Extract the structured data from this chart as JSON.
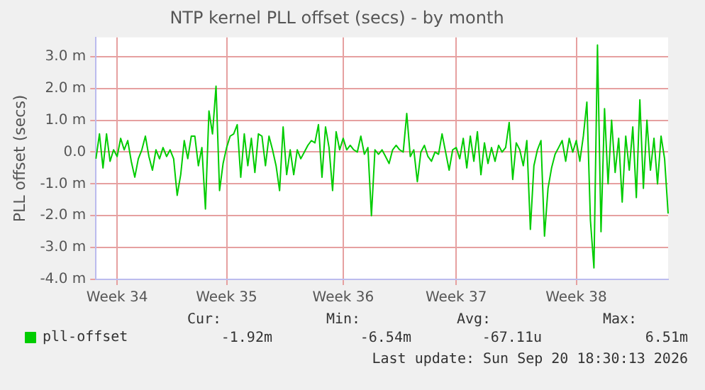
{
  "chart_data": {
    "type": "line",
    "title": "NTP kernel PLL offset (secs) - by month",
    "ylabel": "PLL offset (secs)",
    "ylim": [
      -4,
      3.6
    ],
    "categories": [
      null,
      null,
      null,
      null,
      null,
      null,
      "Week 34",
      null,
      null,
      null,
      null,
      null,
      null,
      null,
      null,
      null,
      null,
      null,
      null,
      null,
      null,
      null,
      null,
      null,
      null,
      null,
      null,
      null,
      null,
      null,
      null,
      null,
      null,
      null,
      null,
      null,
      null,
      "Week 35",
      null,
      null,
      null,
      null,
      null,
      null,
      null,
      null,
      null,
      null,
      null,
      null,
      null,
      null,
      null,
      null,
      null,
      null,
      null,
      null,
      null,
      null,
      null,
      null,
      null,
      null,
      null,
      null,
      null,
      null,
      null,
      null,
      "Week 36",
      null,
      null,
      null,
      null,
      null,
      null,
      null,
      null,
      null,
      null,
      null,
      null,
      null,
      null,
      null,
      null,
      null,
      null,
      null,
      null,
      null,
      null,
      null,
      null,
      null,
      null,
      null,
      null,
      null,
      null,
      null,
      "Week 37",
      null,
      null,
      null,
      null,
      null,
      null,
      null,
      null,
      null,
      null,
      null,
      null,
      null,
      null,
      null,
      null,
      null,
      null,
      null,
      null,
      null,
      null,
      null,
      null,
      null,
      null,
      null,
      null,
      null,
      null,
      null,
      null,
      null,
      "Week 38",
      null,
      null,
      null,
      null,
      null,
      null,
      null,
      null,
      null,
      null,
      null,
      null,
      null,
      null,
      null,
      null,
      null,
      null,
      null,
      null,
      null,
      null,
      null,
      null,
      null,
      null
    ],
    "yticks": [
      {
        "value": -4,
        "label": "-4.0 m"
      },
      {
        "value": -3,
        "label": "-3.0 m"
      },
      {
        "value": -2,
        "label": "-2.0 m"
      },
      {
        "value": -1,
        "label": "-1.0 m"
      },
      {
        "value": 0,
        "label": "0.0"
      },
      {
        "value": 1,
        "label": "1.0 m"
      },
      {
        "value": 2,
        "label": "2.0 m"
      },
      {
        "value": 3,
        "label": "3.0 m"
      }
    ],
    "grid": true,
    "legend": "bottom left",
    "marker": "none",
    "line_style": "solid",
    "annotations": [
      "Cur:",
      "-1.92m",
      "Min:",
      "-6.54m",
      "Avg:",
      "-67.11u",
      "Max:",
      "6.51m",
      "Last update: Sun Sep 20 18:30:13 2026"
    ],
    "series": [
      {
        "name": "pll-offset",
        "color": "#00cc00",
        "values": [
          -0.21,
          0.57,
          -0.5,
          0.57,
          -0.29,
          0.07,
          -0.14,
          0.43,
          0.07,
          0.36,
          -0.29,
          -0.79,
          -0.21,
          0.07,
          0.5,
          -0.14,
          -0.57,
          0.07,
          -0.21,
          0.14,
          -0.14,
          0.07,
          -0.21,
          -1.36,
          -0.71,
          0.36,
          -0.21,
          0.5,
          0.5,
          -0.43,
          0.14,
          -1.79,
          1.29,
          0.57,
          2.07,
          -1.21,
          -0.36,
          0.14,
          0.5,
          0.57,
          0.86,
          -0.79,
          0.57,
          -0.43,
          0.43,
          -0.64,
          0.57,
          0.5,
          -0.43,
          0.5,
          0.07,
          -0.43,
          -1.21,
          0.79,
          -0.71,
          0.07,
          -0.71,
          0.07,
          -0.21,
          0,
          0.21,
          0.36,
          0.29,
          0.86,
          -0.79,
          0.79,
          0.14,
          -1.21,
          0.64,
          0.07,
          0.43,
          0.07,
          0.21,
          0.07,
          0,
          0.5,
          -0.07,
          0.14,
          -2.0,
          0.07,
          -0.07,
          0.07,
          -0.14,
          -0.36,
          0.07,
          0.21,
          0.07,
          0,
          1.21,
          -0.14,
          0.07,
          -0.93,
          0,
          0.21,
          -0.14,
          -0.29,
          0,
          -0.07,
          0.57,
          0,
          -0.57,
          0.07,
          0.14,
          -0.21,
          0.43,
          -0.5,
          0.5,
          -0.29,
          0.64,
          -0.71,
          0.29,
          -0.36,
          0.14,
          -0.29,
          0.21,
          0,
          0.14,
          0.93,
          -0.86,
          0.29,
          0.07,
          -0.43,
          0.36,
          -2.43,
          -0.43,
          0.07,
          0.36,
          -2.64,
          -1.14,
          -0.5,
          -0.07,
          0.14,
          0.36,
          -0.29,
          0.43,
          0,
          0.36,
          -0.29,
          0.5,
          1.57,
          -2.14,
          -3.64,
          3.36,
          -2.5,
          1.36,
          -1.0,
          1.0,
          -0.64,
          0.43,
          -1.57,
          0.5,
          -0.57,
          0.79,
          -1.43,
          1.64,
          -1.14,
          1.0,
          -0.57,
          0.43,
          -1.0,
          0.5,
          -0.21,
          -1.93
        ]
      }
    ]
  }
}
